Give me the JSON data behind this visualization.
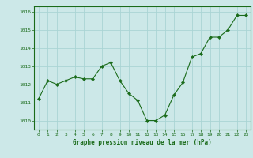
{
  "x": [
    0,
    1,
    2,
    3,
    4,
    5,
    6,
    7,
    8,
    9,
    10,
    11,
    12,
    13,
    14,
    15,
    16,
    17,
    18,
    19,
    20,
    21,
    22,
    23
  ],
  "y": [
    1011.2,
    1012.2,
    1012.0,
    1012.2,
    1012.4,
    1012.3,
    1012.3,
    1013.0,
    1013.2,
    1012.2,
    1011.5,
    1011.1,
    1010.0,
    1010.0,
    1010.3,
    1011.4,
    1012.1,
    1013.5,
    1013.7,
    1014.6,
    1014.6,
    1015.0,
    1015.8,
    1015.8
  ],
  "xlim": [
    -0.5,
    23.5
  ],
  "ylim": [
    1009.5,
    1016.3
  ],
  "yticks": [
    1010,
    1011,
    1012,
    1013,
    1014,
    1015,
    1016
  ],
  "xticks": [
    0,
    1,
    2,
    3,
    4,
    5,
    6,
    7,
    8,
    9,
    10,
    11,
    12,
    13,
    14,
    15,
    16,
    17,
    18,
    19,
    20,
    21,
    22,
    23
  ],
  "line_color": "#1a6b1a",
  "marker_color": "#1a6b1a",
  "bg_color": "#cce8e8",
  "grid_color": "#aad4d4",
  "xlabel": "Graphe pression niveau de la mer (hPa)",
  "xlabel_color": "#1a6b1a",
  "tick_color": "#1a6b1a"
}
